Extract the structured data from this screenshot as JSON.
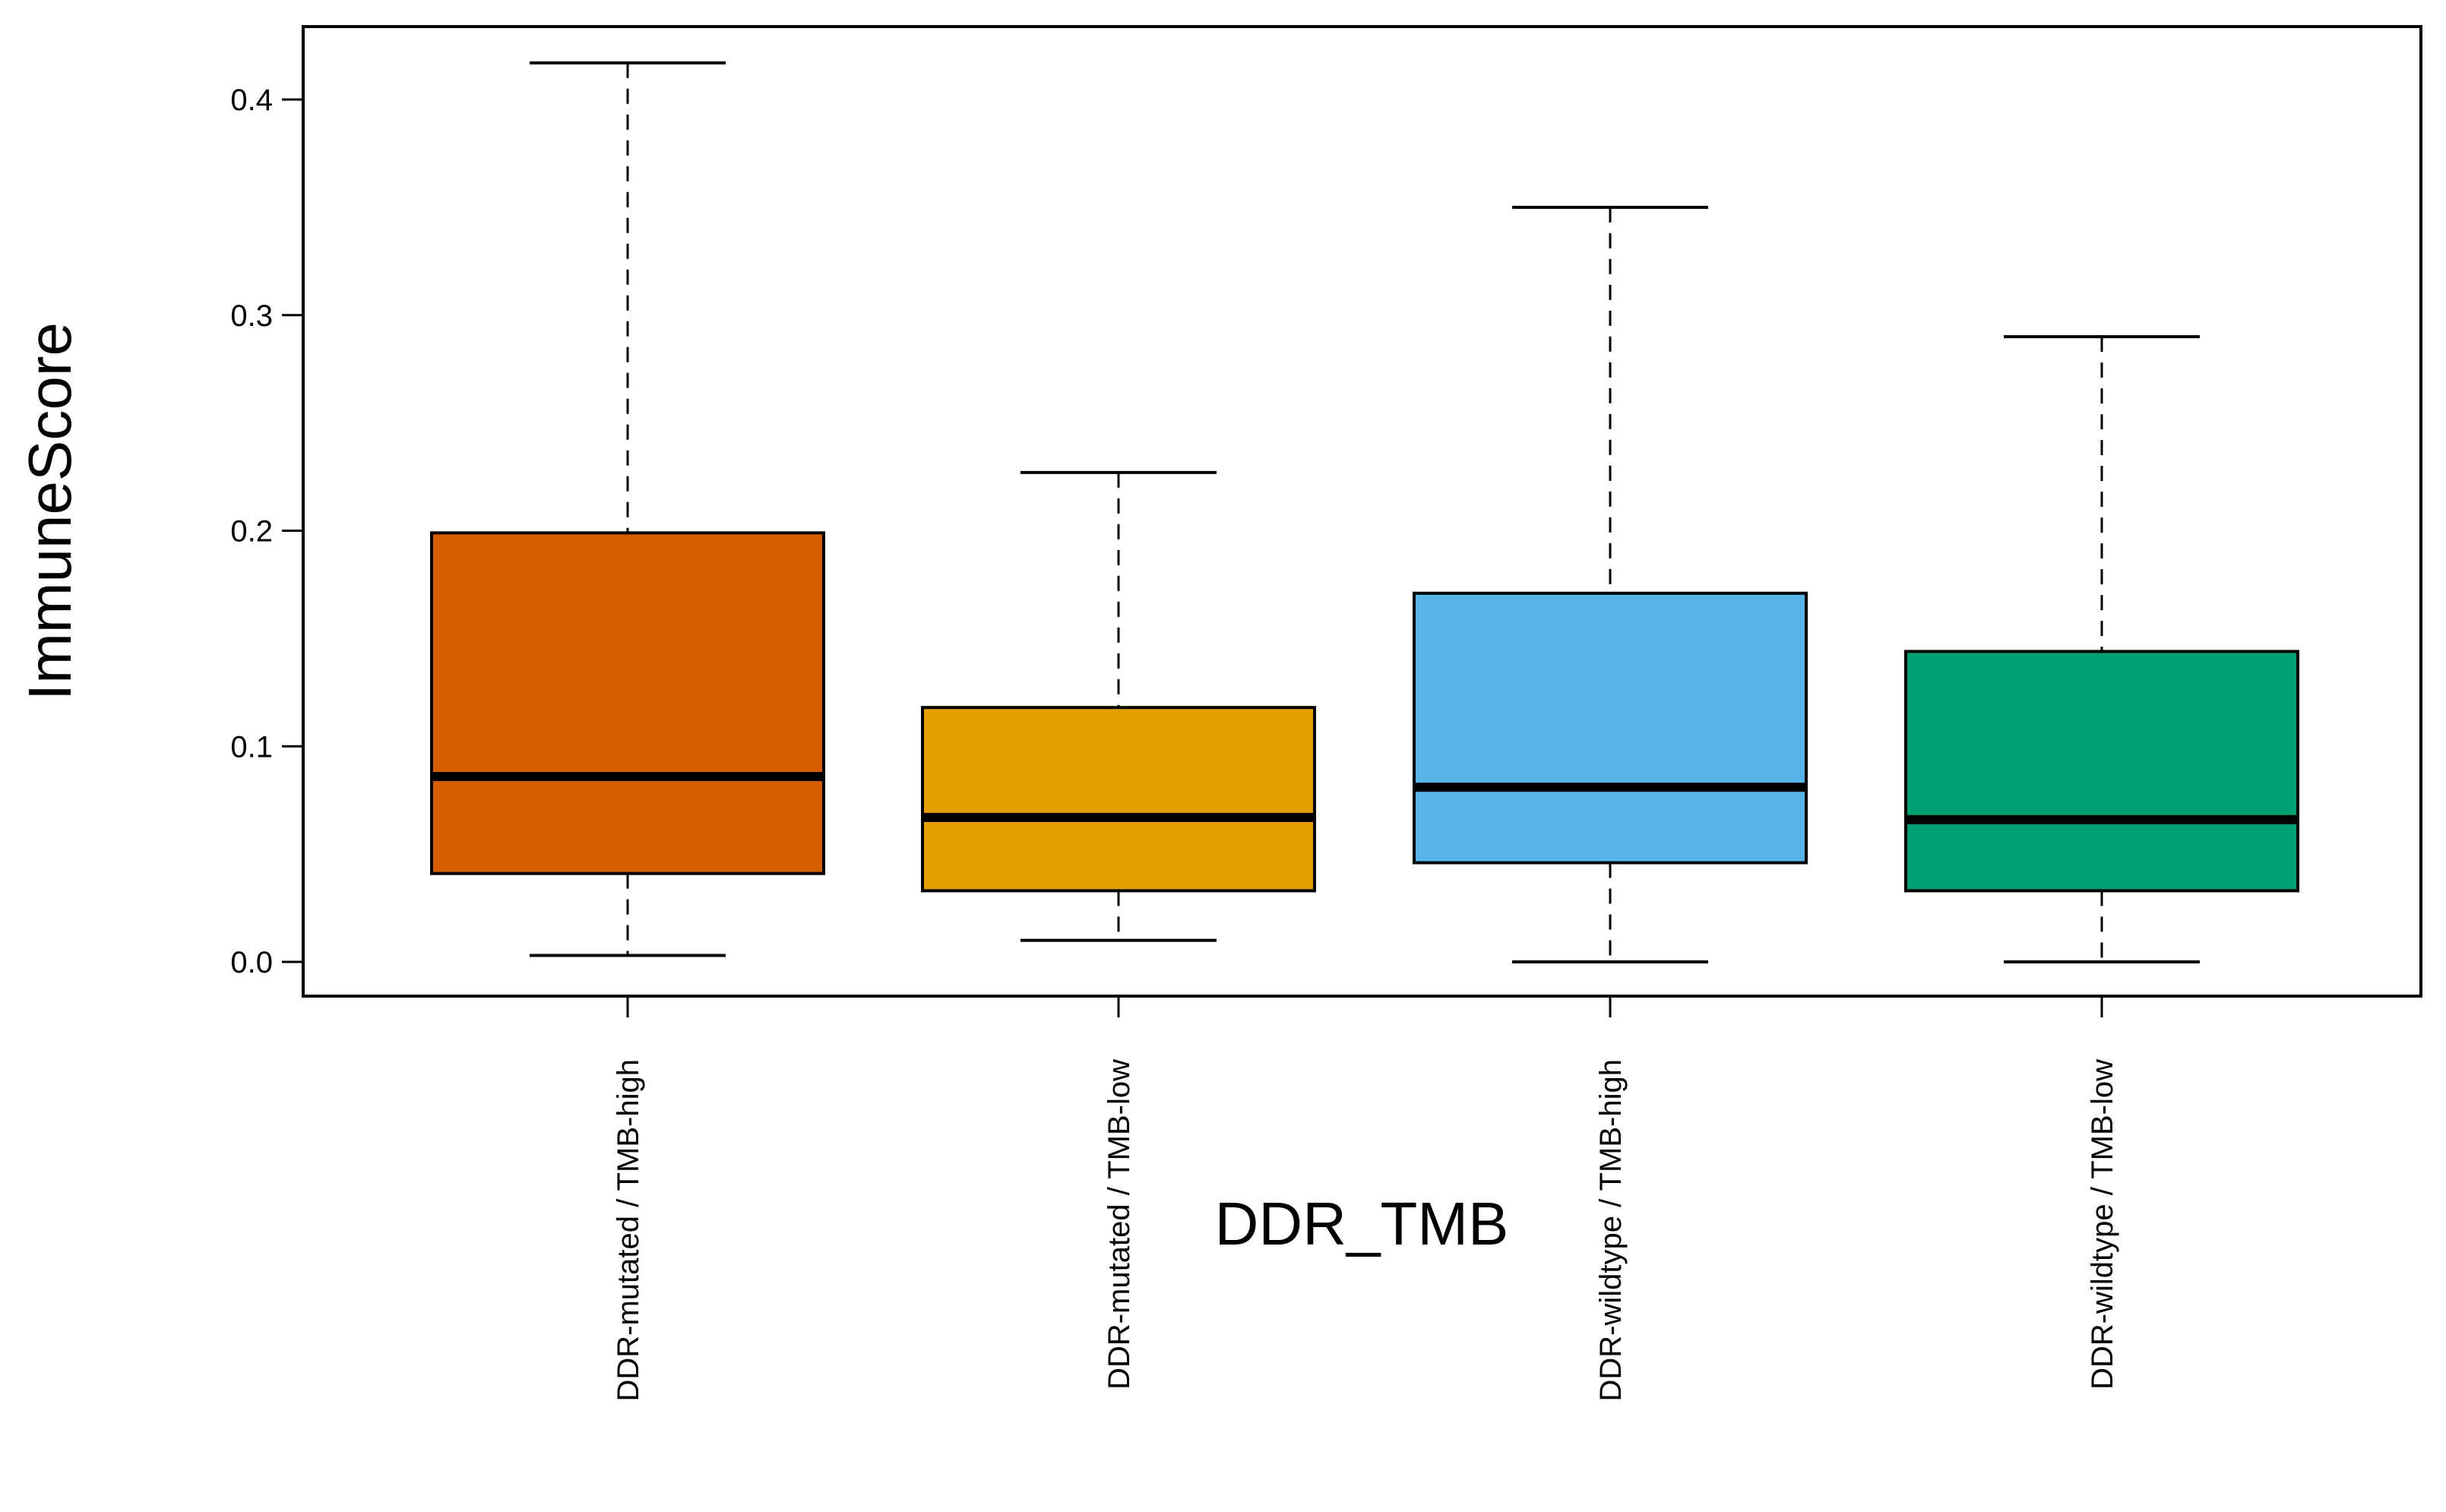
{
  "chart_data": {
    "type": "boxplot",
    "title": "",
    "xlabel": "DDR_TMB",
    "ylabel": "ImmuneScore",
    "ylim": [
      -0.01,
      0.425
    ],
    "yticks": [
      "0.0",
      "0.1",
      "0.2",
      "0.3",
      "0.4"
    ],
    "ytick_values": [
      0.0,
      0.1,
      0.2,
      0.3,
      0.4
    ],
    "grid": false,
    "legend": "none",
    "categories": [
      "DDR-mutated / TMB-high",
      "DDR-mutated / TMB-low",
      "DDR-wildtype / TMB-high",
      "DDR-wildtype / TMB-low"
    ],
    "boxes": [
      {
        "category": "DDR-mutated / TMB-high",
        "min": 0.003,
        "q1": 0.041,
        "median": 0.086,
        "q3": 0.199,
        "max": 0.417,
        "color": "#D55E00"
      },
      {
        "category": "DDR-mutated / TMB-low",
        "min": 0.01,
        "q1": 0.033,
        "median": 0.067,
        "q3": 0.118,
        "max": 0.227,
        "color": "#E69F00"
      },
      {
        "category": "DDR-wildtype / TMB-high",
        "min": 0.0,
        "q1": 0.046,
        "median": 0.081,
        "q3": 0.171,
        "max": 0.35,
        "color": "#56B4E9"
      },
      {
        "category": "DDR-wildtype / TMB-low",
        "min": 0.0,
        "q1": 0.033,
        "median": 0.066,
        "q3": 0.144,
        "max": 0.29,
        "color": "#009E73"
      }
    ]
  }
}
